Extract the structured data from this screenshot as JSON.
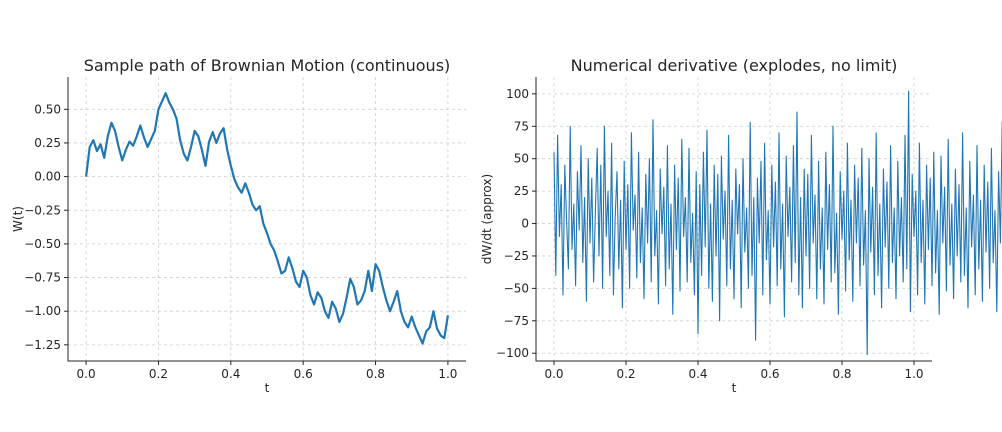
{
  "chart_data": [
    {
      "type": "line",
      "title": "Sample path of Brownian Motion (continuous)",
      "xlabel": "t",
      "ylabel": "W(t)",
      "xlim": [
        -0.05,
        1.05
      ],
      "ylim": [
        -1.37,
        0.74
      ],
      "xticks": [
        0.0,
        0.2,
        0.4,
        0.6,
        0.8,
        1.0
      ],
      "xtick_labels": [
        "0.0",
        "0.2",
        "0.4",
        "0.6",
        "0.8",
        "1.0"
      ],
      "yticks": [
        0.5,
        0.25,
        0.0,
        -0.25,
        -0.5,
        -0.75,
        -1.0,
        -1.25
      ],
      "ytick_labels": [
        "0.50",
        "0.25",
        "0.00",
        "−0.25",
        "−0.50",
        "−0.75",
        "−1.00",
        "−1.25"
      ],
      "grid": true,
      "color": "#1f77b4",
      "series": [
        {
          "name": "W(t)",
          "x": [
            0.0,
            0.01,
            0.02,
            0.03,
            0.04,
            0.05,
            0.06,
            0.07,
            0.08,
            0.09,
            0.1,
            0.11,
            0.12,
            0.13,
            0.14,
            0.15,
            0.16,
            0.17,
            0.18,
            0.19,
            0.2,
            0.21,
            0.22,
            0.23,
            0.24,
            0.25,
            0.26,
            0.27,
            0.28,
            0.29,
            0.3,
            0.31,
            0.32,
            0.33,
            0.34,
            0.35,
            0.36,
            0.37,
            0.38,
            0.39,
            0.4,
            0.41,
            0.42,
            0.43,
            0.44,
            0.45,
            0.46,
            0.47,
            0.48,
            0.49,
            0.5,
            0.51,
            0.52,
            0.53,
            0.54,
            0.55,
            0.56,
            0.57,
            0.58,
            0.59,
            0.6,
            0.61,
            0.62,
            0.63,
            0.64,
            0.65,
            0.66,
            0.67,
            0.68,
            0.69,
            0.7,
            0.71,
            0.72,
            0.73,
            0.74,
            0.75,
            0.76,
            0.77,
            0.78,
            0.79,
            0.8,
            0.81,
            0.82,
            0.83,
            0.84,
            0.85,
            0.86,
            0.87,
            0.88,
            0.89,
            0.9,
            0.91,
            0.92,
            0.93,
            0.94,
            0.95,
            0.96,
            0.97,
            0.98,
            0.99,
            1.0
          ],
          "y": [
            0.0,
            0.22,
            0.27,
            0.19,
            0.24,
            0.14,
            0.3,
            0.4,
            0.34,
            0.22,
            0.12,
            0.2,
            0.26,
            0.23,
            0.3,
            0.38,
            0.29,
            0.22,
            0.28,
            0.34,
            0.5,
            0.56,
            0.62,
            0.55,
            0.5,
            0.43,
            0.27,
            0.17,
            0.12,
            0.22,
            0.34,
            0.3,
            0.2,
            0.08,
            0.26,
            0.33,
            0.25,
            0.32,
            0.36,
            0.2,
            0.08,
            -0.02,
            -0.08,
            -0.12,
            -0.05,
            -0.12,
            -0.21,
            -0.25,
            -0.22,
            -0.35,
            -0.42,
            -0.5,
            -0.55,
            -0.63,
            -0.72,
            -0.7,
            -0.6,
            -0.68,
            -0.78,
            -0.82,
            -0.7,
            -0.75,
            -0.88,
            -0.95,
            -0.86,
            -0.9,
            -1.0,
            -1.05,
            -0.93,
            -0.98,
            -1.08,
            -1.02,
            -0.9,
            -0.76,
            -0.82,
            -0.95,
            -0.92,
            -0.85,
            -0.7,
            -0.85,
            -0.65,
            -0.7,
            -0.82,
            -0.92,
            -1.0,
            -0.93,
            -0.85,
            -1.0,
            -1.08,
            -1.12,
            -1.04,
            -1.12,
            -1.18,
            -1.24,
            -1.15,
            -1.12,
            -1.0,
            -1.13,
            -1.18,
            -1.2,
            -1.03
          ]
        }
      ]
    },
    {
      "type": "line",
      "title": "Numerical derivative (explodes, no limit)",
      "xlabel": "t",
      "ylabel": "dW/dt (approx)",
      "xlim": [
        -0.05,
        1.05
      ],
      "ylim": [
        -106,
        113
      ],
      "xticks": [
        0.0,
        0.2,
        0.4,
        0.6,
        0.8,
        1.0
      ],
      "xtick_labels": [
        "0.0",
        "0.2",
        "0.4",
        "0.6",
        "0.8",
        "1.0"
      ],
      "yticks": [
        100,
        75,
        50,
        25,
        0,
        -25,
        -50,
        -75,
        -100
      ],
      "ytick_labels": [
        "100",
        "75",
        "50",
        "25",
        "0",
        "−25",
        "−50",
        "−75",
        "−100"
      ],
      "grid": true,
      "color": "#1f77b4",
      "series": [
        {
          "name": "dW/dt (approx)",
          "x_start": 0.0,
          "x_step": 0.005,
          "y": [
            55,
            -40,
            68,
            -10,
            30,
            -55,
            45,
            2,
            -35,
            75,
            -20,
            15,
            -48,
            40,
            -5,
            60,
            -30,
            20,
            -60,
            50,
            -15,
            35,
            -45,
            10,
            58,
            -25,
            45,
            -50,
            75,
            -10,
            25,
            -40,
            62,
            -55,
            5,
            40,
            -35,
            18,
            -65,
            48,
            -20,
            30,
            -50,
            70,
            -5,
            22,
            -42,
            55,
            -30,
            12,
            -58,
            38,
            -15,
            50,
            -45,
            80,
            -25,
            10,
            -62,
            42,
            -8,
            28,
            -48,
            60,
            -35,
            15,
            -70,
            45,
            -20,
            35,
            -52,
            65,
            -10,
            20,
            -45,
            58,
            -30,
            8,
            -55,
            40,
            -85,
            30,
            -40,
            55,
            -18,
            72,
            -50,
            15,
            -60,
            45,
            -25,
            38,
            -75,
            52,
            -12,
            25,
            -48,
            68,
            -35,
            18,
            -58,
            42,
            -8,
            30,
            -65,
            50,
            -22,
            12,
            -50,
            78,
            -40,
            20,
            -90,
            35,
            -15,
            48,
            -55,
            62,
            -28,
            10,
            -62,
            45,
            -18,
            32,
            -48,
            70,
            -35,
            15,
            -72,
            52,
            -10,
            28,
            -45,
            60,
            -30,
            86,
            -55,
            20,
            -65,
            42,
            -25,
            38,
            -50,
            68,
            -15,
            22,
            -58,
            48,
            -35,
            12,
            -62,
            55,
            -20,
            30,
            -45,
            75,
            -38,
            8,
            -70,
            40,
            -12,
            25,
            -52,
            62,
            -28,
            18,
            -60,
            45,
            -15,
            35,
            -48,
            58,
            -32,
            10,
            -101,
            50,
            -22,
            28,
            -55,
            70,
            -40,
            15,
            -65,
            42,
            -18,
            32,
            -50,
            60,
            -30,
            12,
            -58,
            48,
            -25,
            20,
            -45,
            68,
            -35,
            102,
            -68,
            38,
            -10,
            25,
            -55,
            62,
            -30,
            18,
            -62,
            45,
            -20,
            35,
            -48,
            55,
            -38,
            10,
            -70,
            52,
            -15,
            28,
            -52,
            65,
            -32,
            15,
            -58,
            42,
            -25,
            30,
            -45,
            70,
            -40,
            12,
            -65,
            48,
            -18,
            22,
            -55,
            60,
            -35,
            18,
            -60,
            45,
            -22,
            32,
            -50,
            58,
            -30,
            10,
            -68,
            40,
            -15,
            78,
            -75,
            35,
            -20,
            25,
            -62,
            55,
            -28,
            15,
            -58,
            42,
            -18,
            30,
            -48,
            62,
            -35,
            12,
            -70,
            50,
            -22,
            28,
            -52,
            66,
            -38,
            16,
            -55,
            44,
            -15,
            24,
            -45,
            60,
            -30,
            18,
            -60,
            48,
            -20,
            34,
            -50,
            56,
            -32,
            12,
            -66,
            46,
            -16,
            26,
            -54,
            64,
            -36,
            14,
            -58,
            40,
            -22,
            30,
            -48,
            58,
            -28,
            20,
            -64,
            52,
            -18,
            28,
            -50,
            62,
            -34,
            10,
            -62,
            44,
            -14,
            22,
            -52,
            60,
            -30,
            16,
            -56,
            46,
            -24,
            34,
            -46,
            72,
            -40,
            12,
            -68,
            50,
            -20,
            26,
            -54,
            58,
            -32,
            18,
            -60,
            44,
            -16,
            80,
            -55,
            38,
            -22,
            30,
            -50,
            64,
            -36,
            14,
            -66,
            48,
            -18,
            28,
            -52,
            56,
            -30,
            10,
            -62,
            42,
            -24,
            32,
            -48,
            60,
            -34,
            16,
            -58,
            46,
            -20,
            24,
            -54,
            66,
            -38,
            12,
            -70,
            52,
            -14,
            30,
            -50,
            62,
            -28,
            18,
            -92,
            48,
            -22,
            34,
            -56,
            58,
            -32,
            64
          ]
        }
      ]
    }
  ]
}
